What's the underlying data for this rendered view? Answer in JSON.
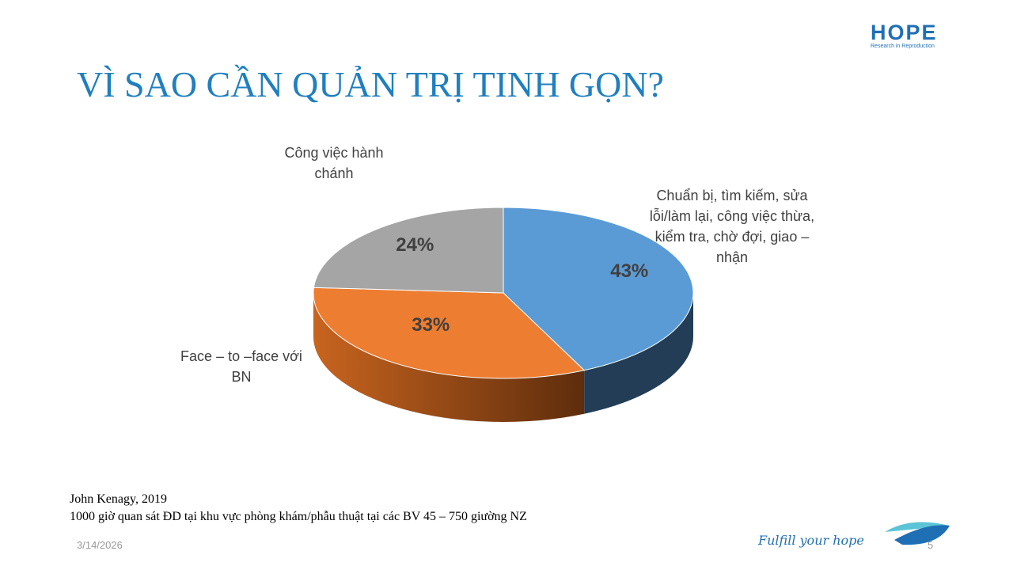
{
  "chart_data": {
    "type": "pie",
    "title": "VÌ SAO CẦN QUẢN TRỊ TINH GỌN?",
    "categories": [
      "Chuẩn bị, tìm kiếm, sửa lỗi/làm lại, công việc thừa, kiểm tra, chờ đợi, giao – nhận",
      "Face – to –face với BN",
      "Công việc hành chánh"
    ],
    "values": [
      43,
      33,
      24
    ],
    "value_labels": [
      "43%",
      "33%",
      "24%"
    ],
    "colors": [
      "#5b9bd5",
      "#ed7d31",
      "#a5a5a5"
    ]
  },
  "slide": {
    "logo": "HOPE",
    "logo_tagline": "Research in Reproduction",
    "source": [
      "John Kenagy, 2019",
      "1000 giờ quan sát ĐD tại khu vực phòng khám/phẫu thuật tại các BV 45 – 750 giường NZ"
    ],
    "date": "3/14/2026",
    "slogan": "Fulfill your hope",
    "page": "5"
  }
}
